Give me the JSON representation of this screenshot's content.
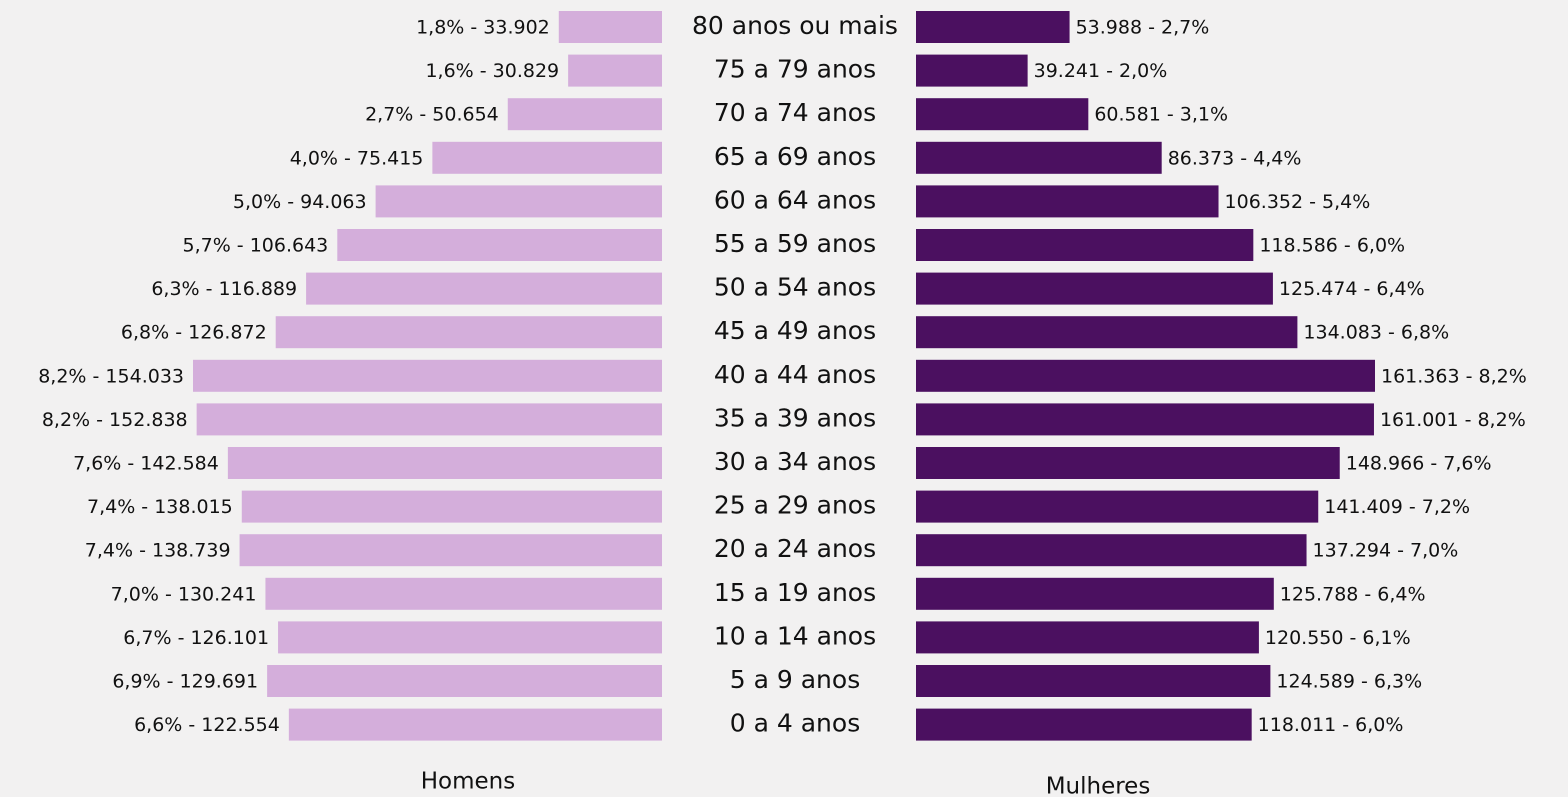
{
  "chart_data": {
    "type": "bar",
    "categories": [
      "80 anos ou mais",
      "75 a 79 anos",
      "70 a 74 anos",
      "65 a 69 anos",
      "60 a 64 anos",
      "55 a 59 anos",
      "50 a 54 anos",
      "45 a 49 anos",
      "40 a 44 anos",
      "35 a 39 anos",
      "30 a 34 anos",
      "25 a 29 anos",
      "20 a 24 anos",
      "15 a 19 anos",
      "10 a 14 anos",
      "5 a 9 anos",
      "0 a 4 anos"
    ],
    "series": [
      {
        "name": "Homens",
        "color": "#d4aedb",
        "values": [
          33902,
          30829,
          50654,
          75415,
          94063,
          106643,
          116889,
          126872,
          154033,
          152838,
          142584,
          138015,
          138739,
          130241,
          126101,
          129691,
          122554
        ],
        "value_labels": [
          "1,8% - 33.902",
          "1,6% - 30.829",
          "2,7% - 50.654",
          "4,0% - 75.415",
          "5,0% - 94.063",
          "5,7% - 106.643",
          "6,3% - 116.889",
          "6,8% - 126.872",
          "8,2% - 154.033",
          "8,2% - 152.838",
          "7,6% - 142.584",
          "7,4% - 138.015",
          "7,4% - 138.739",
          "7,0% - 130.241",
          "6,7% - 126.101",
          "6,9% - 129.691",
          "6,6% - 122.554"
        ]
      },
      {
        "name": "Mulheres",
        "color": "#4b1060",
        "values": [
          53988,
          39241,
          60581,
          86373,
          106352,
          118586,
          125474,
          134083,
          161363,
          161001,
          148966,
          141409,
          137294,
          125788,
          120550,
          124589,
          118011
        ],
        "value_labels": [
          "53.988 - 2,7%",
          "39.241 - 2,0%",
          "60.581 - 3,1%",
          "86.373 - 4,4%",
          "106.352 - 5,4%",
          "118.586 - 6,0%",
          "125.474 - 6,4%",
          "134.083 - 6,8%",
          "161.363 - 8,2%",
          "161.001 - 8,2%",
          "148.966 - 7,6%",
          "141.409 - 7,2%",
          "137.294 - 7,0%",
          "125.788 - 6,4%",
          "120.550 - 6,1%",
          "124.589 - 6,3%",
          "118.011 - 6,0%"
        ]
      }
    ]
  }
}
